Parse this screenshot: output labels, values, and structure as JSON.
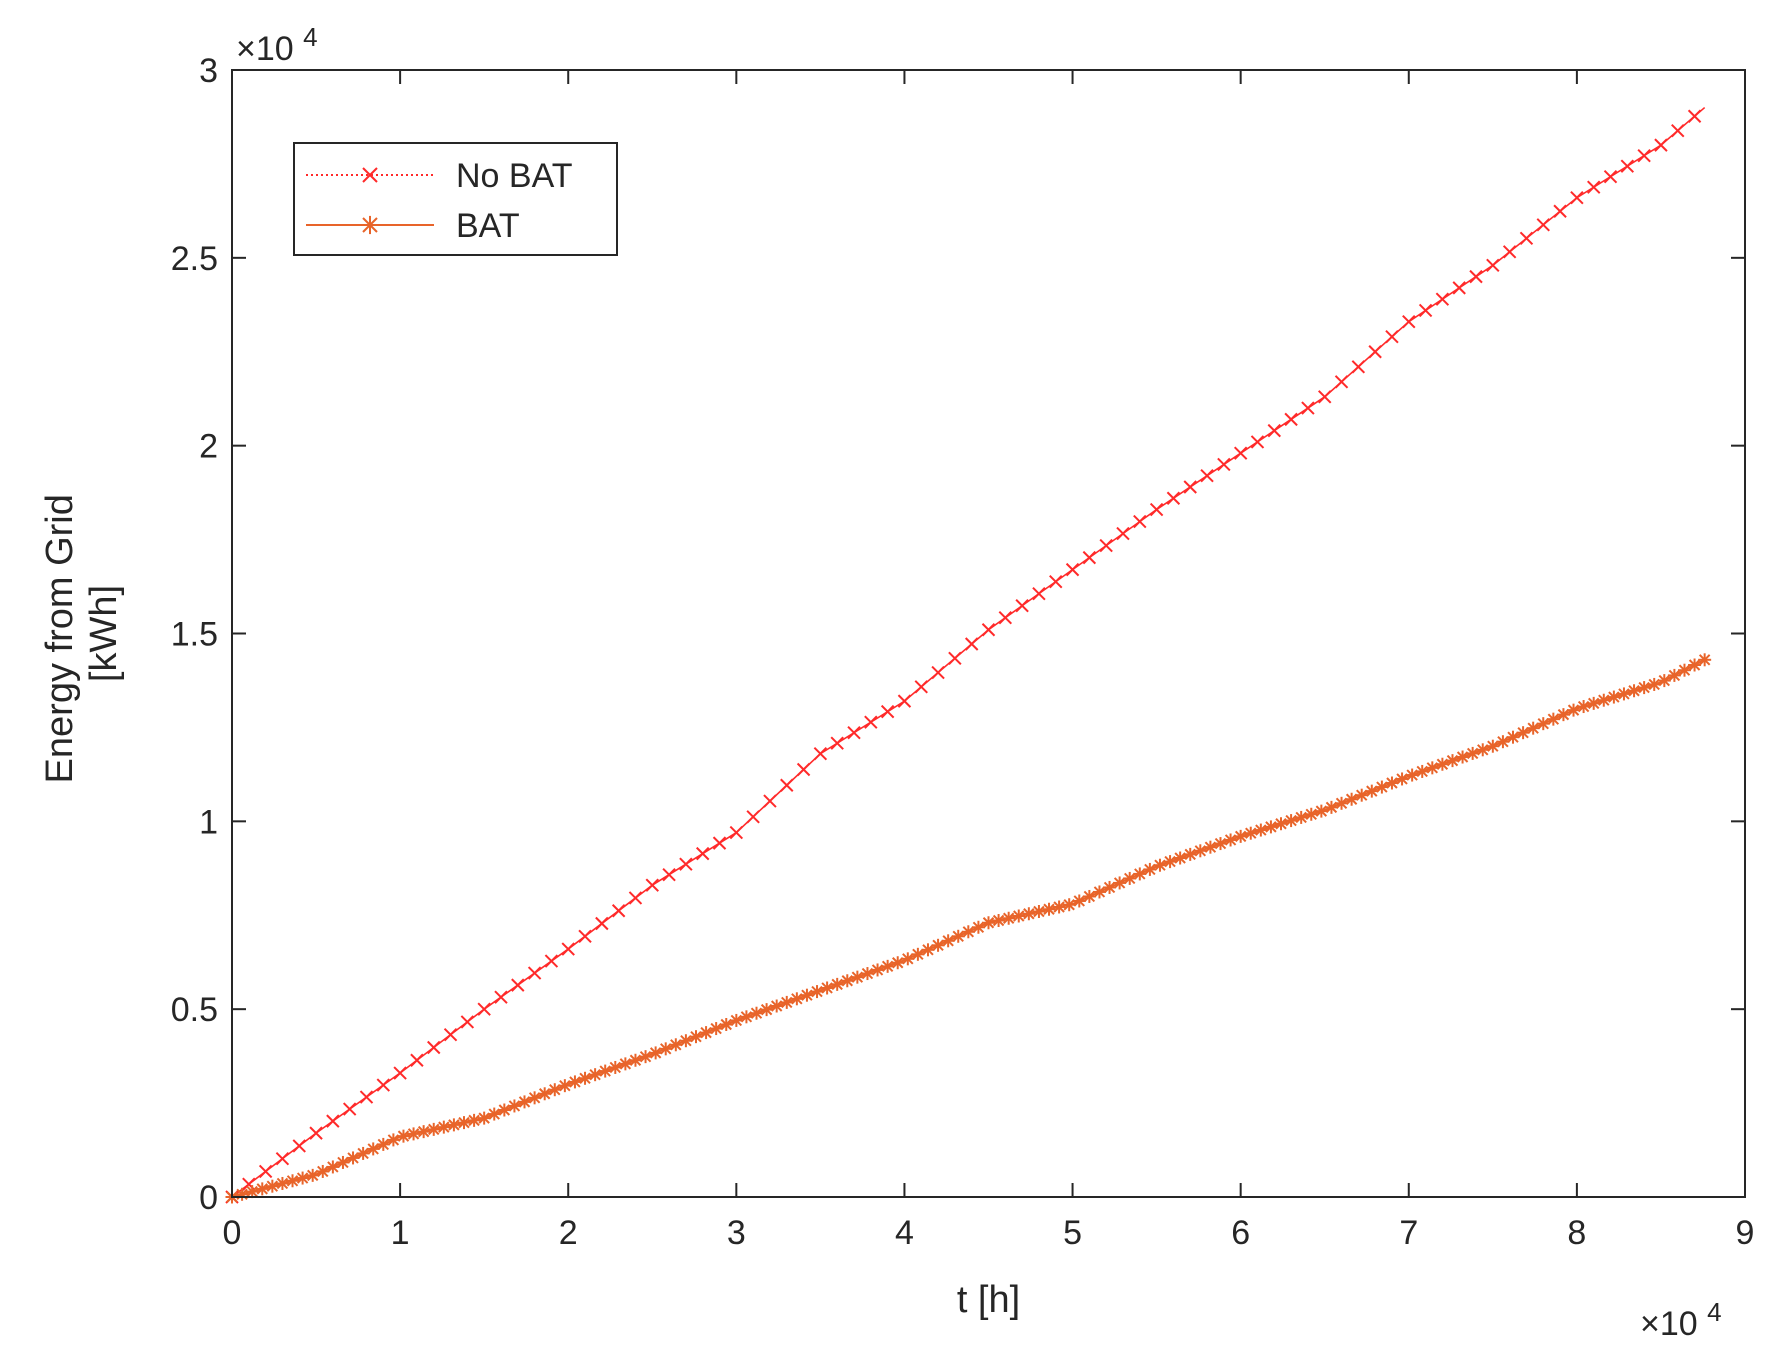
{
  "chart_data": {
    "type": "line",
    "title": "",
    "xlabel": "t [h]",
    "ylabel": [
      "Energy from Grid",
      "[kWh]"
    ],
    "x_exponent": "×10",
    "x_exponent_power": "4",
    "y_exponent": "×10",
    "y_exponent_power": "4",
    "xlim": [
      0,
      90000
    ],
    "ylim": [
      0,
      30000
    ],
    "xticks": [
      0,
      10000,
      20000,
      30000,
      40000,
      50000,
      60000,
      70000,
      80000,
      90000
    ],
    "xtick_labels": [
      "0",
      "1",
      "2",
      "3",
      "4",
      "5",
      "6",
      "7",
      "8",
      "9"
    ],
    "yticks": [
      0,
      5000,
      10000,
      15000,
      20000,
      25000,
      30000
    ],
    "ytick_labels": [
      "0",
      "0.5",
      "1",
      "1.5",
      "2",
      "2.5",
      "3"
    ],
    "grid": false,
    "legend_position": "top-left",
    "series": [
      {
        "name": "No BAT",
        "color": "#ff2a2a",
        "line_style": "dotted-solid",
        "marker": "x",
        "x": [
          0,
          5000,
          10000,
          15000,
          20000,
          25000,
          30000,
          35000,
          40000,
          45000,
          50000,
          55000,
          60000,
          65000,
          70000,
          75000,
          80000,
          85000,
          87600
        ],
        "y": [
          0,
          1700,
          3300,
          5000,
          6600,
          8300,
          9700,
          11800,
          13200,
          15100,
          16700,
          18300,
          19800,
          21300,
          23300,
          24800,
          26600,
          28000,
          29000
        ]
      },
      {
        "name": "BAT",
        "color": "#e8642a",
        "line_style": "solid",
        "marker": "*",
        "x": [
          0,
          5000,
          10000,
          15000,
          20000,
          25000,
          30000,
          35000,
          40000,
          45000,
          50000,
          55000,
          60000,
          65000,
          70000,
          75000,
          80000,
          85000,
          87600
        ],
        "y": [
          0,
          600,
          1600,
          2100,
          3000,
          3800,
          4700,
          5500,
          6300,
          7300,
          7800,
          8800,
          9600,
          10300,
          11200,
          12000,
          13000,
          13700,
          14300
        ]
      }
    ]
  }
}
